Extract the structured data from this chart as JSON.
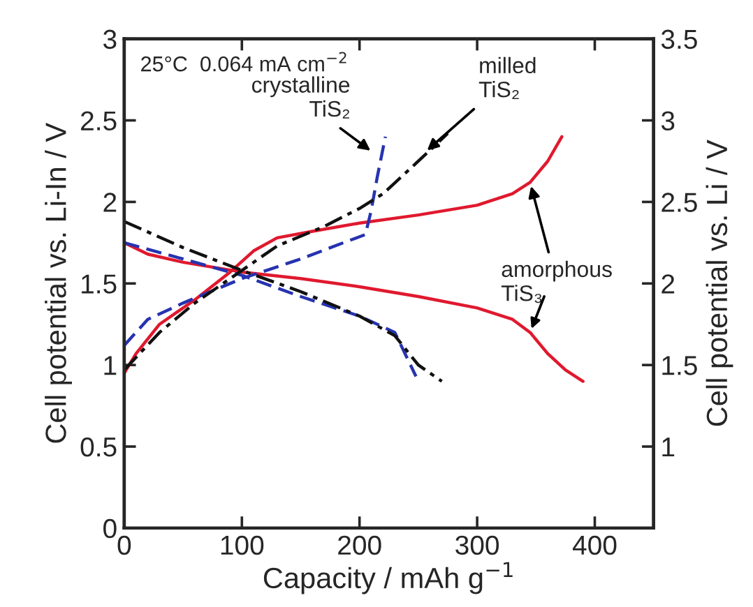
{
  "chart_data": {
    "type": "line",
    "xlabel": "Capacity / mAh g$^{−1}$",
    "ylabel": "Cell potential vs. Li-In / V",
    "y2label": "Cell potential vs. Li / V",
    "xlim": [
      0,
      450
    ],
    "xticks": [
      0,
      100,
      200,
      300,
      400
    ],
    "ylim": [
      0,
      3
    ],
    "yticks": [
      0,
      0.5,
      1,
      1.5,
      2,
      2.5,
      3
    ],
    "y2lim": [
      0.5,
      3.5
    ],
    "y2ticks": [
      1,
      1.5,
      2,
      2.5,
      3,
      3.5
    ],
    "grid": false,
    "legend": false,
    "marker": "none",
    "series": [
      {
        "color": "#e0192e",
        "line_style": "solid",
        "x": [
          0,
          10,
          30,
          60,
          90,
          110,
          130,
          160,
          200,
          250,
          300,
          330,
          345,
          360,
          372
        ],
        "values": [
          0.95,
          1.07,
          1.25,
          1.4,
          1.57,
          1.7,
          1.78,
          1.82,
          1.87,
          1.92,
          1.98,
          2.05,
          2.12,
          2.25,
          2.4
        ]
      },
      {
        "color": "#e0192e",
        "line_style": "solid",
        "x": [
          0,
          20,
          50,
          100,
          150,
          200,
          250,
          300,
          330,
          345,
          360,
          375,
          390
        ],
        "values": [
          1.75,
          1.68,
          1.63,
          1.57,
          1.53,
          1.48,
          1.42,
          1.35,
          1.28,
          1.2,
          1.07,
          0.97,
          0.9
        ]
      },
      {
        "color": "#2633b0",
        "line_style": "dashed",
        "x": [
          0,
          20,
          50,
          100,
          150,
          190,
          205,
          210,
          215,
          222
        ],
        "values": [
          1.12,
          1.28,
          1.38,
          1.53,
          1.65,
          1.76,
          1.8,
          1.95,
          2.15,
          2.4
        ]
      },
      {
        "color": "#2633b0",
        "line_style": "dashed",
        "x": [
          0,
          50,
          100,
          150,
          200,
          230,
          240,
          248
        ],
        "values": [
          1.75,
          1.65,
          1.55,
          1.42,
          1.3,
          1.2,
          1.05,
          0.93
        ]
      },
      {
        "color": "#111111",
        "line_style": "dashdot",
        "x": [
          0,
          30,
          60,
          100,
          130,
          170,
          200,
          220,
          250,
          275
        ],
        "values": [
          0.97,
          1.2,
          1.38,
          1.58,
          1.73,
          1.85,
          1.96,
          2.05,
          2.25,
          2.42
        ]
      },
      {
        "color": "#111111",
        "line_style": "dashdot",
        "x": [
          0,
          50,
          100,
          150,
          200,
          230,
          250,
          270
        ],
        "values": [
          1.88,
          1.72,
          1.58,
          1.45,
          1.3,
          1.18,
          1.0,
          0.9
        ]
      }
    ],
    "annotations": [
      "25°C  0.064 mA cm$^{−2}$",
      {
        "text": "crystalline\nTiS₂",
        "x": 212,
        "y": 2.3
      },
      {
        "text": "milled\nTiS₂",
        "x": 255,
        "y": 2.3
      },
      {
        "text": "amorphous\nTiS₃",
        "x": 345,
        "y": 2.12
      }
    ]
  }
}
